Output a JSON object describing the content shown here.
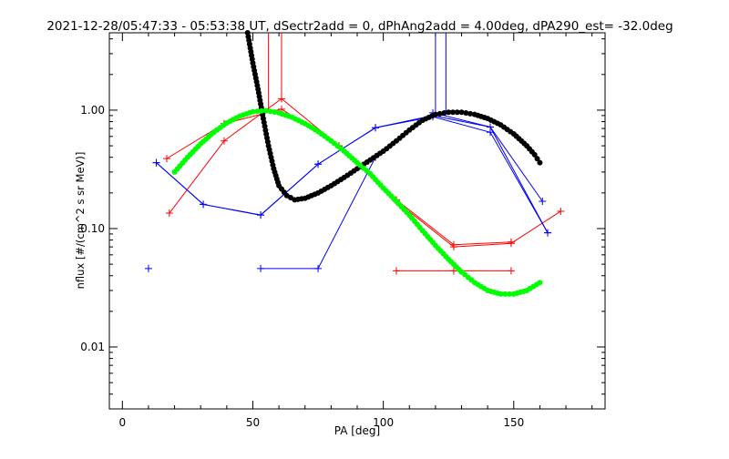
{
  "chart_data": {
    "type": "scatter",
    "title": "2021-12-28/05:47:33 - 05:53:38 UT, dSectr2add = 0, dPhAng2add = 4.00deg, dPA290_est= -32.0deg",
    "xlabel": "PA [deg]",
    "ylabel": "nflux [#/(cm^2 s sr MeV)]",
    "xlim": [
      -5,
      185
    ],
    "ylim": [
      0.003,
      4.5
    ],
    "y_scale": "log",
    "grid": false,
    "x_ticks": [
      0,
      50,
      100,
      150
    ],
    "x_tick_labels": [
      "0",
      "50",
      "100",
      "150"
    ],
    "y_ticks": [
      0.01,
      0.1,
      1.0
    ],
    "y_tick_labels": [
      "0.01",
      "0.10",
      "1.00"
    ],
    "colors": {
      "red": "#ff0000",
      "blue": "#0000ff",
      "black": "#000000",
      "green": "#00ff00",
      "axes": "#000000"
    },
    "series": [
      {
        "color": "#ff0000",
        "style": "line-plus",
        "x": [
          17,
          39,
          61,
          83,
          105,
          127,
          149,
          168
        ],
        "y": [
          0.39,
          0.77,
          1.02,
          0.5,
          0.17,
          0.07,
          0.075,
          0.14
        ]
      },
      {
        "color": "#ff0000",
        "style": "line-plus",
        "x": [
          18,
          39,
          61,
          83,
          105,
          127,
          149
        ],
        "y": [
          0.135,
          0.55,
          1.25,
          0.5,
          0.175,
          0.073,
          0.077
        ]
      },
      {
        "color": "#ff0000",
        "style": "line-plus",
        "x": [
          105,
          127,
          149
        ],
        "y": [
          0.044,
          0.044,
          0.044
        ]
      },
      {
        "color": "#ff0000",
        "style": "spike",
        "x": [
          56,
          61
        ],
        "y": [
          0.98,
          1.25
        ]
      },
      {
        "color": "#0000ff",
        "style": "line-plus",
        "x": [
          13,
          31,
          53,
          75,
          97,
          119,
          141,
          163
        ],
        "y": [
          0.36,
          0.16,
          0.13,
          0.35,
          0.71,
          0.88,
          0.65,
          0.092
        ]
      },
      {
        "color": "#0000ff",
        "style": "line-plus",
        "x": [
          13,
          31,
          53,
          75,
          97,
          119,
          141,
          163
        ],
        "y": [
          0.36,
          0.16,
          0.13,
          0.35,
          0.71,
          0.9,
          0.72,
          0.092
        ]
      },
      {
        "color": "#0000ff",
        "style": "line-plus",
        "x": [
          53,
          75,
          97,
          119,
          141,
          161
        ],
        "y": [
          0.046,
          0.046,
          0.4,
          0.95,
          0.72,
          0.17
        ]
      },
      {
        "color": "#0000ff",
        "style": "plus",
        "x": [
          10
        ],
        "y": [
          0.046
        ]
      },
      {
        "color": "#0000ff",
        "style": "spike",
        "x": [
          120,
          124
        ],
        "y": [
          0.95,
          0.92
        ]
      },
      {
        "color": "#000000",
        "style": "dots",
        "x": [
          48,
          50,
          52,
          54,
          56,
          58,
          60,
          63,
          66,
          70,
          75,
          80,
          85,
          90,
          95,
          100,
          105,
          110,
          115,
          120,
          125,
          130,
          135,
          140,
          145,
          150,
          155,
          158,
          160
        ],
        "y": [
          4.5,
          2.5,
          1.5,
          0.85,
          0.5,
          0.32,
          0.23,
          0.19,
          0.175,
          0.18,
          0.2,
          0.23,
          0.27,
          0.32,
          0.38,
          0.45,
          0.55,
          0.68,
          0.82,
          0.92,
          0.96,
          0.96,
          0.92,
          0.85,
          0.75,
          0.63,
          0.5,
          0.42,
          0.36
        ]
      },
      {
        "color": "#00ff00",
        "style": "dots",
        "x": [
          20,
          25,
          30,
          35,
          40,
          45,
          50,
          55,
          60,
          65,
          70,
          75,
          80,
          85,
          90,
          95,
          100,
          105,
          110,
          115,
          120,
          125,
          130,
          135,
          140,
          145,
          150,
          155,
          160
        ],
        "y": [
          0.3,
          0.4,
          0.52,
          0.65,
          0.78,
          0.89,
          0.97,
          0.99,
          0.95,
          0.87,
          0.77,
          0.66,
          0.55,
          0.45,
          0.36,
          0.29,
          0.22,
          0.17,
          0.13,
          0.096,
          0.072,
          0.055,
          0.043,
          0.035,
          0.03,
          0.028,
          0.028,
          0.03,
          0.035
        ]
      }
    ]
  }
}
